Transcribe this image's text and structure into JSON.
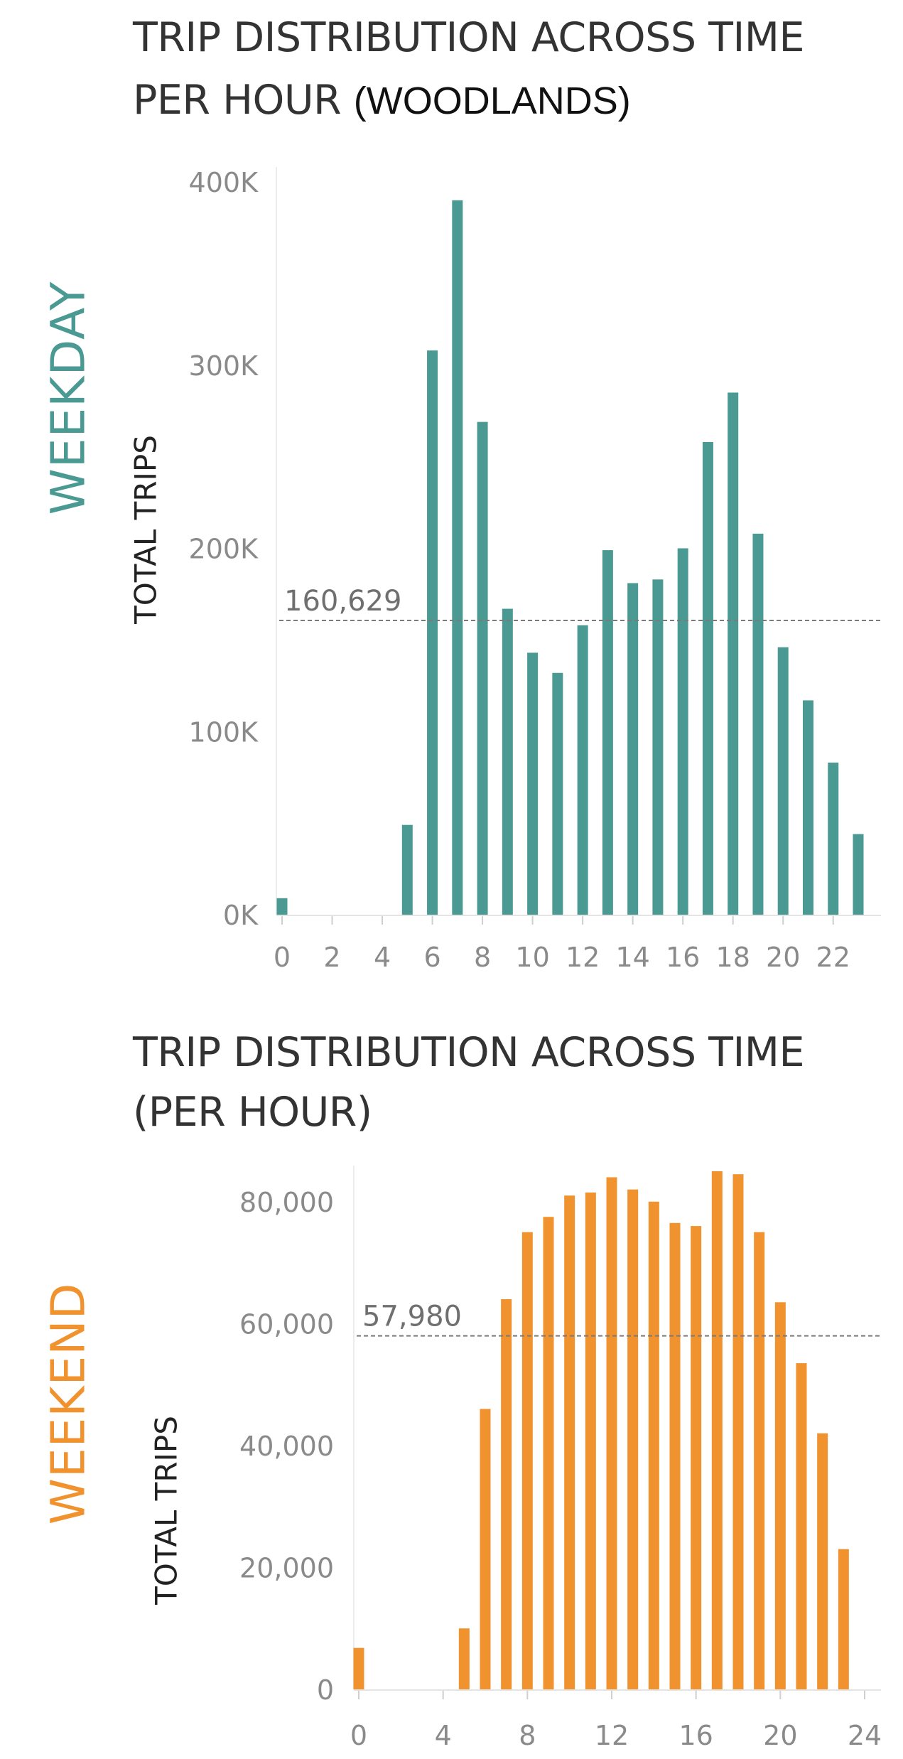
{
  "panel_weekday": {
    "title_main": "TRIP DISTRIBUTION ACROSS TIME",
    "title_line2": "PER HOUR",
    "title_suffix": "(WOODLANDS)",
    "side_label": "WEEKDAY",
    "color": "#4a9a93"
  },
  "panel_weekend": {
    "title_main": "TRIP DISTRIBUTION ACROSS TIME",
    "title_line2": "(PER HOUR)",
    "side_label": "WEEKEND",
    "color": "#f0922e"
  },
  "chart_data": [
    {
      "type": "bar",
      "xlabel": "",
      "ylabel": "TOTAL TRIPS",
      "x": [
        0,
        5,
        6,
        7,
        8,
        9,
        10,
        11,
        12,
        13,
        14,
        15,
        16,
        17,
        18,
        19,
        20,
        21,
        22,
        23
      ],
      "values": [
        9000,
        49000,
        308000,
        390000,
        269000,
        167000,
        143000,
        132000,
        158000,
        199000,
        181000,
        183000,
        200000,
        258000,
        285000,
        208000,
        146000,
        117000,
        83000,
        44000
      ],
      "xlim": [
        0,
        23
      ],
      "ylim": [
        0,
        400000
      ],
      "x_ticks": [
        0,
        2,
        4,
        6,
        8,
        10,
        12,
        14,
        16,
        18,
        20,
        22
      ],
      "y_ticks": [
        0,
        100000,
        200000,
        300000,
        400000
      ],
      "y_tick_labels": [
        "0K",
        "100K",
        "200K",
        "300K",
        "400K"
      ],
      "reference_line": {
        "value": 160629,
        "label": "160,629"
      }
    },
    {
      "type": "bar",
      "xlabel": "",
      "ylabel": "TOTAL TRIPS",
      "x": [
        0,
        5,
        6,
        7,
        8,
        9,
        10,
        11,
        12,
        13,
        14,
        15,
        16,
        17,
        18,
        19,
        20,
        21,
        22,
        23
      ],
      "values": [
        6800,
        10000,
        46000,
        64000,
        75000,
        77500,
        81000,
        81500,
        84000,
        82000,
        80000,
        76500,
        76000,
        85000,
        84500,
        75000,
        63500,
        53500,
        42000,
        23000
      ],
      "xlim": [
        0,
        24
      ],
      "ylim": [
        0,
        90000
      ],
      "x_ticks": [
        0,
        4,
        8,
        12,
        16,
        20,
        24
      ],
      "y_ticks": [
        0,
        20000,
        40000,
        60000,
        80000
      ],
      "y_tick_labels": [
        "0",
        "20,000",
        "40,000",
        "60,000",
        "80,000"
      ],
      "reference_line": {
        "value": 57980,
        "label": "57,980"
      }
    }
  ]
}
